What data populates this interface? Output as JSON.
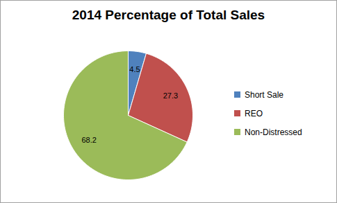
{
  "chart_data": {
    "type": "pie",
    "title": "2014 Percentage of Total Sales",
    "categories": [
      "Short Sale",
      "REO",
      "Non-Distressed"
    ],
    "values": [
      4.5,
      27.3,
      68.2
    ],
    "colors": [
      "#4f81bd",
      "#c0504d",
      "#9bbb59"
    ],
    "data_labels": true,
    "legend": "right"
  }
}
